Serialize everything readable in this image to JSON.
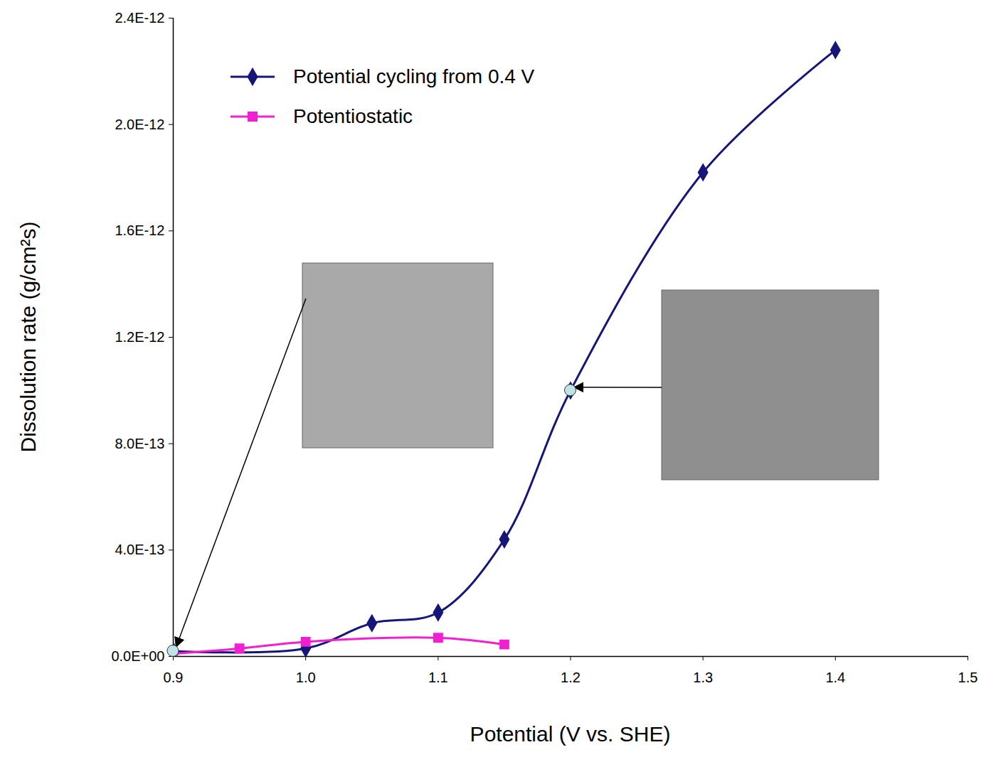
{
  "chart_data": {
    "type": "line",
    "xlabel": "Potential (V vs. SHE)",
    "ylabel": "Dissolution rate (g/cm²s)",
    "xlim": [
      0.9,
      1.5
    ],
    "xticks": [
      0.9,
      {
        "value": 1.0,
        "label": "1.0"
      },
      1.1,
      1.2,
      1.3,
      1.4,
      1.5
    ],
    "ylim": [
      0,
      2.4e-12
    ],
    "yticks": [
      {
        "value": 0,
        "label": "0.0E+00"
      },
      {
        "value": 4e-13,
        "label": "4.0E-13"
      },
      {
        "value": 8e-13,
        "label": "8.0E-13"
      },
      {
        "value": 1.2e-12,
        "label": "1.2E-12"
      },
      {
        "value": 1.6e-12,
        "label": "1.6E-12"
      },
      {
        "value": 2e-12,
        "label": "2.0E-12"
      },
      {
        "value": 2.4e-12,
        "label": "2.4E-12"
      }
    ],
    "grid": false,
    "legend": "upper left",
    "series": [
      {
        "name": "Potential cycling from 0.4 V",
        "color": "#16167a",
        "marker": "diamond",
        "line_style": "solid",
        "x": [
          0.9,
          1.0,
          1.05,
          1.1,
          1.15,
          1.2,
          1.3,
          1.4
        ],
        "values": [
          2e-14,
          3e-14,
          1.25e-13,
          1.65e-13,
          4.4e-13,
          1e-12,
          1.82e-12,
          2.28e-12
        ]
      },
      {
        "name": "Potentiostatic",
        "color": "#f020d0",
        "marker": "square",
        "line_style": "solid",
        "x": [
          0.9,
          0.95,
          1.0,
          1.1,
          1.15
        ],
        "values": [
          1e-14,
          3e-14,
          5.5e-14,
          7e-14,
          4.5e-14
        ]
      }
    ]
  }
}
